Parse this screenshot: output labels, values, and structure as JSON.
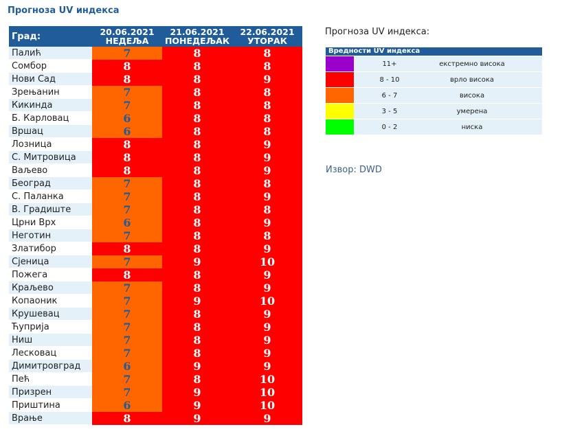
{
  "title": "Прогноза UV индекса",
  "table": {
    "city_header": "Град:",
    "days": [
      {
        "date": "20.06.2021",
        "weekday": "НЕДЕЉА"
      },
      {
        "date": "21.06.2021",
        "weekday": "ПОНЕДЕЉАК"
      },
      {
        "date": "22.06.2021",
        "weekday": "УТОРАК"
      }
    ],
    "rows": [
      {
        "city": "Палић",
        "values": [
          "7",
          "8",
          "8"
        ]
      },
      {
        "city": "Сомбор",
        "values": [
          "8",
          "8",
          "8"
        ]
      },
      {
        "city": "Нови Сад",
        "values": [
          "8",
          "8",
          "9"
        ]
      },
      {
        "city": "Зрењанин",
        "values": [
          "7",
          "8",
          "8"
        ]
      },
      {
        "city": "Кикинда",
        "values": [
          "7",
          "8",
          "8"
        ]
      },
      {
        "city": "Б. Карловац",
        "values": [
          "6",
          "8",
          "8"
        ]
      },
      {
        "city": "Вршац",
        "values": [
          "6",
          "8",
          "8"
        ]
      },
      {
        "city": "Лозница",
        "values": [
          "8",
          "8",
          "9"
        ]
      },
      {
        "city": "С. Митровица",
        "values": [
          "8",
          "8",
          "9"
        ]
      },
      {
        "city": "Ваљево",
        "values": [
          "8",
          "8",
          "9"
        ]
      },
      {
        "city": "Београд",
        "values": [
          "7",
          "8",
          "8"
        ]
      },
      {
        "city": "С. Паланка",
        "values": [
          "7",
          "8",
          "9"
        ]
      },
      {
        "city": "В. Градиште",
        "values": [
          "7",
          "8",
          "8"
        ]
      },
      {
        "city": "Црни Врх",
        "values": [
          "6",
          "8",
          "9"
        ]
      },
      {
        "city": "Неготин",
        "values": [
          "7",
          "8",
          "8"
        ]
      },
      {
        "city": "Златибор",
        "values": [
          "8",
          "8",
          "9"
        ]
      },
      {
        "city": "Сјеница",
        "values": [
          "7",
          "9",
          "10"
        ]
      },
      {
        "city": "Пожега",
        "values": [
          "8",
          "8",
          "9"
        ]
      },
      {
        "city": "Краљево",
        "values": [
          "7",
          "8",
          "9"
        ]
      },
      {
        "city": "Копаоник",
        "values": [
          "7",
          "9",
          "10"
        ]
      },
      {
        "city": "Крушевац",
        "values": [
          "7",
          "8",
          "9"
        ]
      },
      {
        "city": "Ћуприја",
        "values": [
          "7",
          "8",
          "9"
        ]
      },
      {
        "city": "Ниш",
        "values": [
          "7",
          "8",
          "9"
        ]
      },
      {
        "city": "Лесковац",
        "values": [
          "7",
          "8",
          "9"
        ]
      },
      {
        "city": "Димитровград",
        "values": [
          "6",
          "9",
          "9"
        ]
      },
      {
        "city": "Пећ",
        "values": [
          "7",
          "8",
          "10"
        ]
      },
      {
        "city": "Призрен",
        "values": [
          "7",
          "9",
          "10"
        ]
      },
      {
        "city": "Приштина",
        "values": [
          "6",
          "9",
          "10"
        ]
      },
      {
        "city": "Врање",
        "values": [
          "8",
          "9",
          "9"
        ]
      }
    ]
  },
  "legend": {
    "title": "Прогноза UV индекса:",
    "header": "Вредности UV индекса",
    "items": [
      {
        "range": "11+",
        "label": "екстремно висока",
        "color": "#9900cc"
      },
      {
        "range": "8 - 10",
        "label": "врло висока",
        "color": "#ff0000"
      },
      {
        "range": "6 - 7",
        "label": "висока",
        "color": "#ff6600"
      },
      {
        "range": "3 - 5",
        "label": "умерена",
        "color": "#ffff00"
      },
      {
        "range": "0 - 2",
        "label": "ниска",
        "color": "#00ff00"
      }
    ]
  },
  "source": "Извор: DWD"
}
